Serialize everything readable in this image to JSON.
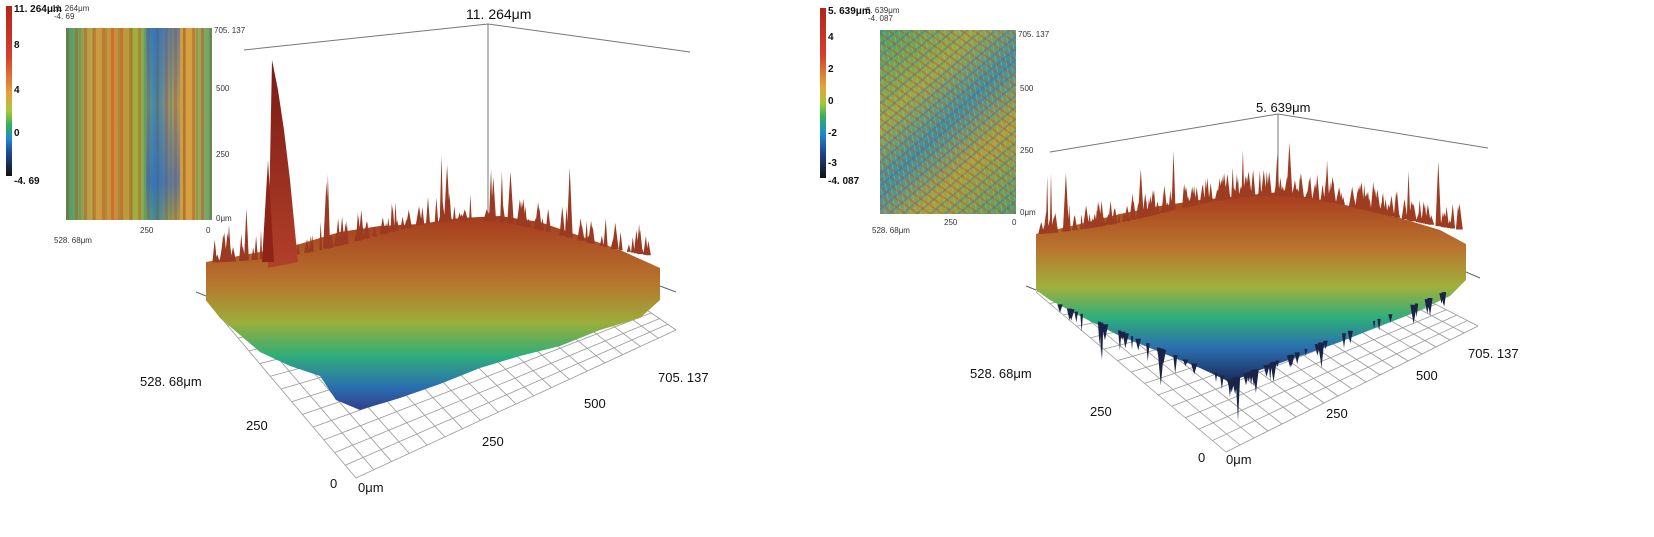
{
  "figure_left": {
    "peak_label": "11. 264μm",
    "axis_y_label": "528. 68μm",
    "axis_x_end_label": "705. 137",
    "ticks_front": [
      "250",
      "0"
    ],
    "ticks_right": [
      "500",
      "250"
    ],
    "origin_label": "0μm",
    "colorbar": {
      "top": "11. 264μm",
      "ticks": [
        "8",
        "4",
        "0"
      ],
      "bottom": "-4. 69"
    },
    "inset": {
      "header_top": "11. 264μm",
      "header_bottom": "-4. 69",
      "right_ticks": [
        "705. 137",
        "500",
        "250",
        "0μm"
      ],
      "bottom_ticks": [
        "528. 68μm",
        "250",
        "0"
      ]
    }
  },
  "figure_right": {
    "peak_label": "5. 639μm",
    "axis_y_label": "528. 68μm",
    "axis_x_end_label": "705. 137",
    "ticks_front": [
      "250",
      "0"
    ],
    "ticks_right": [
      "500",
      "250"
    ],
    "origin_label": "0μm",
    "colorbar": {
      "top": "5. 639μm",
      "ticks": [
        "4",
        "2",
        "0",
        "-2",
        "-3"
      ],
      "bottom": "-4. 087"
    },
    "inset": {
      "header_top": "5. 639μm",
      "header_bottom": "-4. 087",
      "right_ticks": [
        "705. 137",
        "500",
        "250",
        "0μm"
      ],
      "bottom_ticks": [
        "528. 68μm",
        "250",
        "0"
      ]
    }
  }
}
